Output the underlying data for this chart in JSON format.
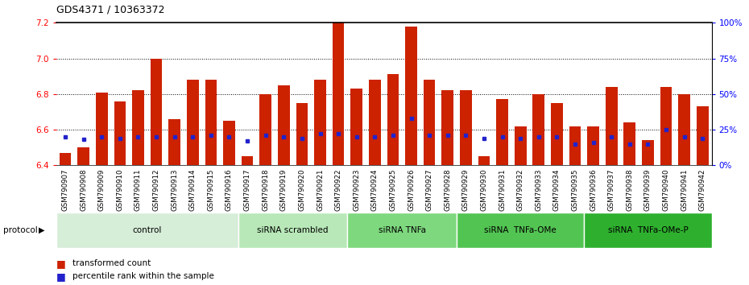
{
  "title": "GDS4371 / 10363372",
  "samples": [
    "GSM790907",
    "GSM790908",
    "GSM790909",
    "GSM790910",
    "GSM790911",
    "GSM790912",
    "GSM790913",
    "GSM790914",
    "GSM790915",
    "GSM790916",
    "GSM790917",
    "GSM790918",
    "GSM790919",
    "GSM790920",
    "GSM790921",
    "GSM790922",
    "GSM790923",
    "GSM790924",
    "GSM790925",
    "GSM790926",
    "GSM790927",
    "GSM790928",
    "GSM790929",
    "GSM790930",
    "GSM790931",
    "GSM790932",
    "GSM790933",
    "GSM790934",
    "GSM790935",
    "GSM790936",
    "GSM790937",
    "GSM790938",
    "GSM790939",
    "GSM790940",
    "GSM790941",
    "GSM790942"
  ],
  "transformed_count": [
    6.47,
    6.5,
    6.81,
    6.76,
    6.82,
    7.0,
    6.66,
    6.88,
    6.88,
    6.65,
    6.45,
    6.8,
    6.85,
    6.75,
    6.88,
    7.2,
    6.83,
    6.88,
    6.91,
    7.18,
    6.88,
    6.82,
    6.82,
    6.45,
    6.77,
    6.62,
    6.8,
    6.75,
    6.62,
    6.62,
    6.84,
    6.64,
    6.54,
    6.84,
    6.8,
    6.73
  ],
  "percentile_rank": [
    20,
    18,
    20,
    19,
    20,
    20,
    20,
    20,
    21,
    20,
    17,
    21,
    20,
    19,
    22,
    22,
    20,
    20,
    21,
    33,
    21,
    21,
    21,
    19,
    20,
    19,
    20,
    20,
    15,
    16,
    20,
    15,
    15,
    25,
    20,
    19
  ],
  "groups": [
    {
      "label": "control",
      "start": 0,
      "end": 10,
      "color": "#d6edd8"
    },
    {
      "label": "siRNA scrambled",
      "start": 10,
      "end": 16,
      "color": "#b8e8b8"
    },
    {
      "label": "siRNA TNFa",
      "start": 16,
      "end": 22,
      "color": "#7ed87e"
    },
    {
      "label": "siRNA  TNFa-OMe",
      "start": 22,
      "end": 29,
      "color": "#52c452"
    },
    {
      "label": "siRNA  TNFa-OMe-P",
      "start": 29,
      "end": 36,
      "color": "#2eb02e"
    }
  ],
  "ylim_left": [
    6.4,
    7.2
  ],
  "ylim_right": [
    0,
    100
  ],
  "yticks_left": [
    6.4,
    6.6,
    6.8,
    7.0,
    7.2
  ],
  "yticks_right": [
    0,
    25,
    50,
    75,
    100
  ],
  "bar_color": "#cc2200",
  "percentile_color": "#2222cc",
  "tick_area_color": "#c8c8c8",
  "legend_items": [
    {
      "label": "transformed count",
      "color": "#cc2200"
    },
    {
      "label": "percentile rank within the sample",
      "color": "#2222cc"
    }
  ]
}
